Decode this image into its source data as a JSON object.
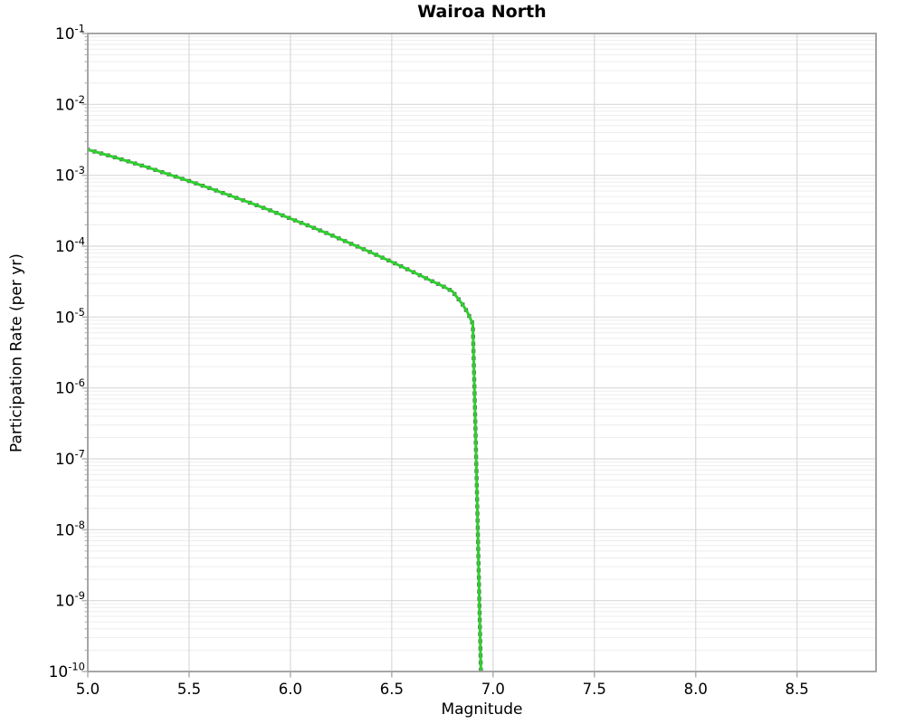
{
  "chart_data": {
    "type": "line",
    "title": "Wairoa North",
    "xlabel": "Magnitude",
    "ylabel": "Participation Rate (per yr)",
    "xlim": [
      5.0,
      8.89
    ],
    "ylim_log10": [
      -10,
      -1
    ],
    "x_ticks": [
      5.0,
      5.5,
      6.0,
      6.5,
      7.0,
      7.5,
      8.0,
      8.5
    ],
    "x_tick_labels": [
      "5.0",
      "5.5",
      "6.0",
      "6.5",
      "7.0",
      "7.5",
      "8.0",
      "8.5"
    ],
    "y_tick_exponents": [
      "-1",
      "-2",
      "-3",
      "-4",
      "-5",
      "-6",
      "-7",
      "-8",
      "-9",
      "-10"
    ],
    "grid": true,
    "legend": false,
    "colors": {
      "line": "#2dd02d",
      "marker": "#5a5a5a",
      "grid_major": "#d9d9d9",
      "grid_minor": "#ededed",
      "border": "#9c9c9c",
      "tick": "#b4b4b4",
      "text": "#000000"
    },
    "series": [
      {
        "name": "participation-rate",
        "points": [
          [
            5.0,
            0.0023
          ],
          [
            5.1,
            0.00191
          ],
          [
            5.2,
            0.00157
          ],
          [
            5.3,
            0.00128
          ],
          [
            5.4,
            0.00103
          ],
          [
            5.5,
            0.00083
          ],
          [
            5.6,
            0.00066
          ],
          [
            5.7,
            0.00052
          ],
          [
            5.8,
            0.00041
          ],
          [
            5.9,
            0.00032
          ],
          [
            6.0,
            0.000245
          ],
          [
            6.1,
            0.000189
          ],
          [
            6.2,
            0.000144
          ],
          [
            6.3,
            0.000108
          ],
          [
            6.4,
            8.1e-05
          ],
          [
            6.5,
            6e-05
          ],
          [
            6.6,
            4.4e-05
          ],
          [
            6.7,
            3.2e-05
          ],
          [
            6.75,
            2.75e-05
          ],
          [
            6.8,
            2.3e-05
          ],
          [
            6.85,
            1.5e-05
          ],
          [
            6.875,
            1.15e-05
          ],
          [
            6.9,
            8e-06
          ],
          [
            6.905,
            2.2e-06
          ],
          [
            6.91,
            6.3e-07
          ],
          [
            6.915,
            1.6e-07
          ],
          [
            6.92,
            4e-08
          ],
          [
            6.925,
            9e-09
          ],
          [
            6.93,
            2e-09
          ],
          [
            6.935,
            4.5e-10
          ],
          [
            6.94,
            1e-10
          ]
        ]
      }
    ]
  }
}
